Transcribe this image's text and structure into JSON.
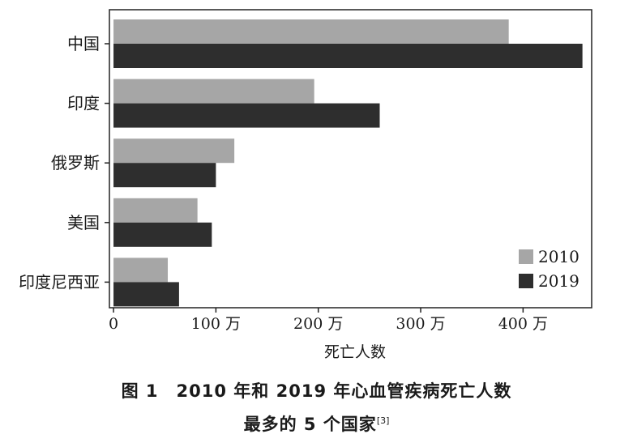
{
  "chart_data": {
    "type": "bar",
    "orientation": "horizontal",
    "categories": [
      "中国",
      "印度",
      "俄罗斯",
      "美国",
      "印度尼西亚"
    ],
    "series": [
      {
        "name": "2010",
        "color": "#a6a6a6",
        "values": [
          386,
          196,
          118,
          82,
          53
        ]
      },
      {
        "name": "2019",
        "color": "#2e2e2e",
        "values": [
          458,
          260,
          100,
          96,
          64
        ]
      }
    ],
    "xlabel": "死亡人数",
    "xticks": [
      {
        "value": 0,
        "label": "0"
      },
      {
        "value": 100,
        "label": "100 万"
      },
      {
        "value": 200,
        "label": "200 万"
      },
      {
        "value": 300,
        "label": "300 万"
      },
      {
        "value": 400,
        "label": "400 万"
      }
    ],
    "xlim": [
      -4,
      467
    ],
    "legend": "bottom-right",
    "grid": false
  },
  "caption": {
    "line1": "图 1　2010 年和 2019 年心血管疾病死亡人数",
    "line2": "最多的 5 个国家",
    "ref": "[3]"
  }
}
